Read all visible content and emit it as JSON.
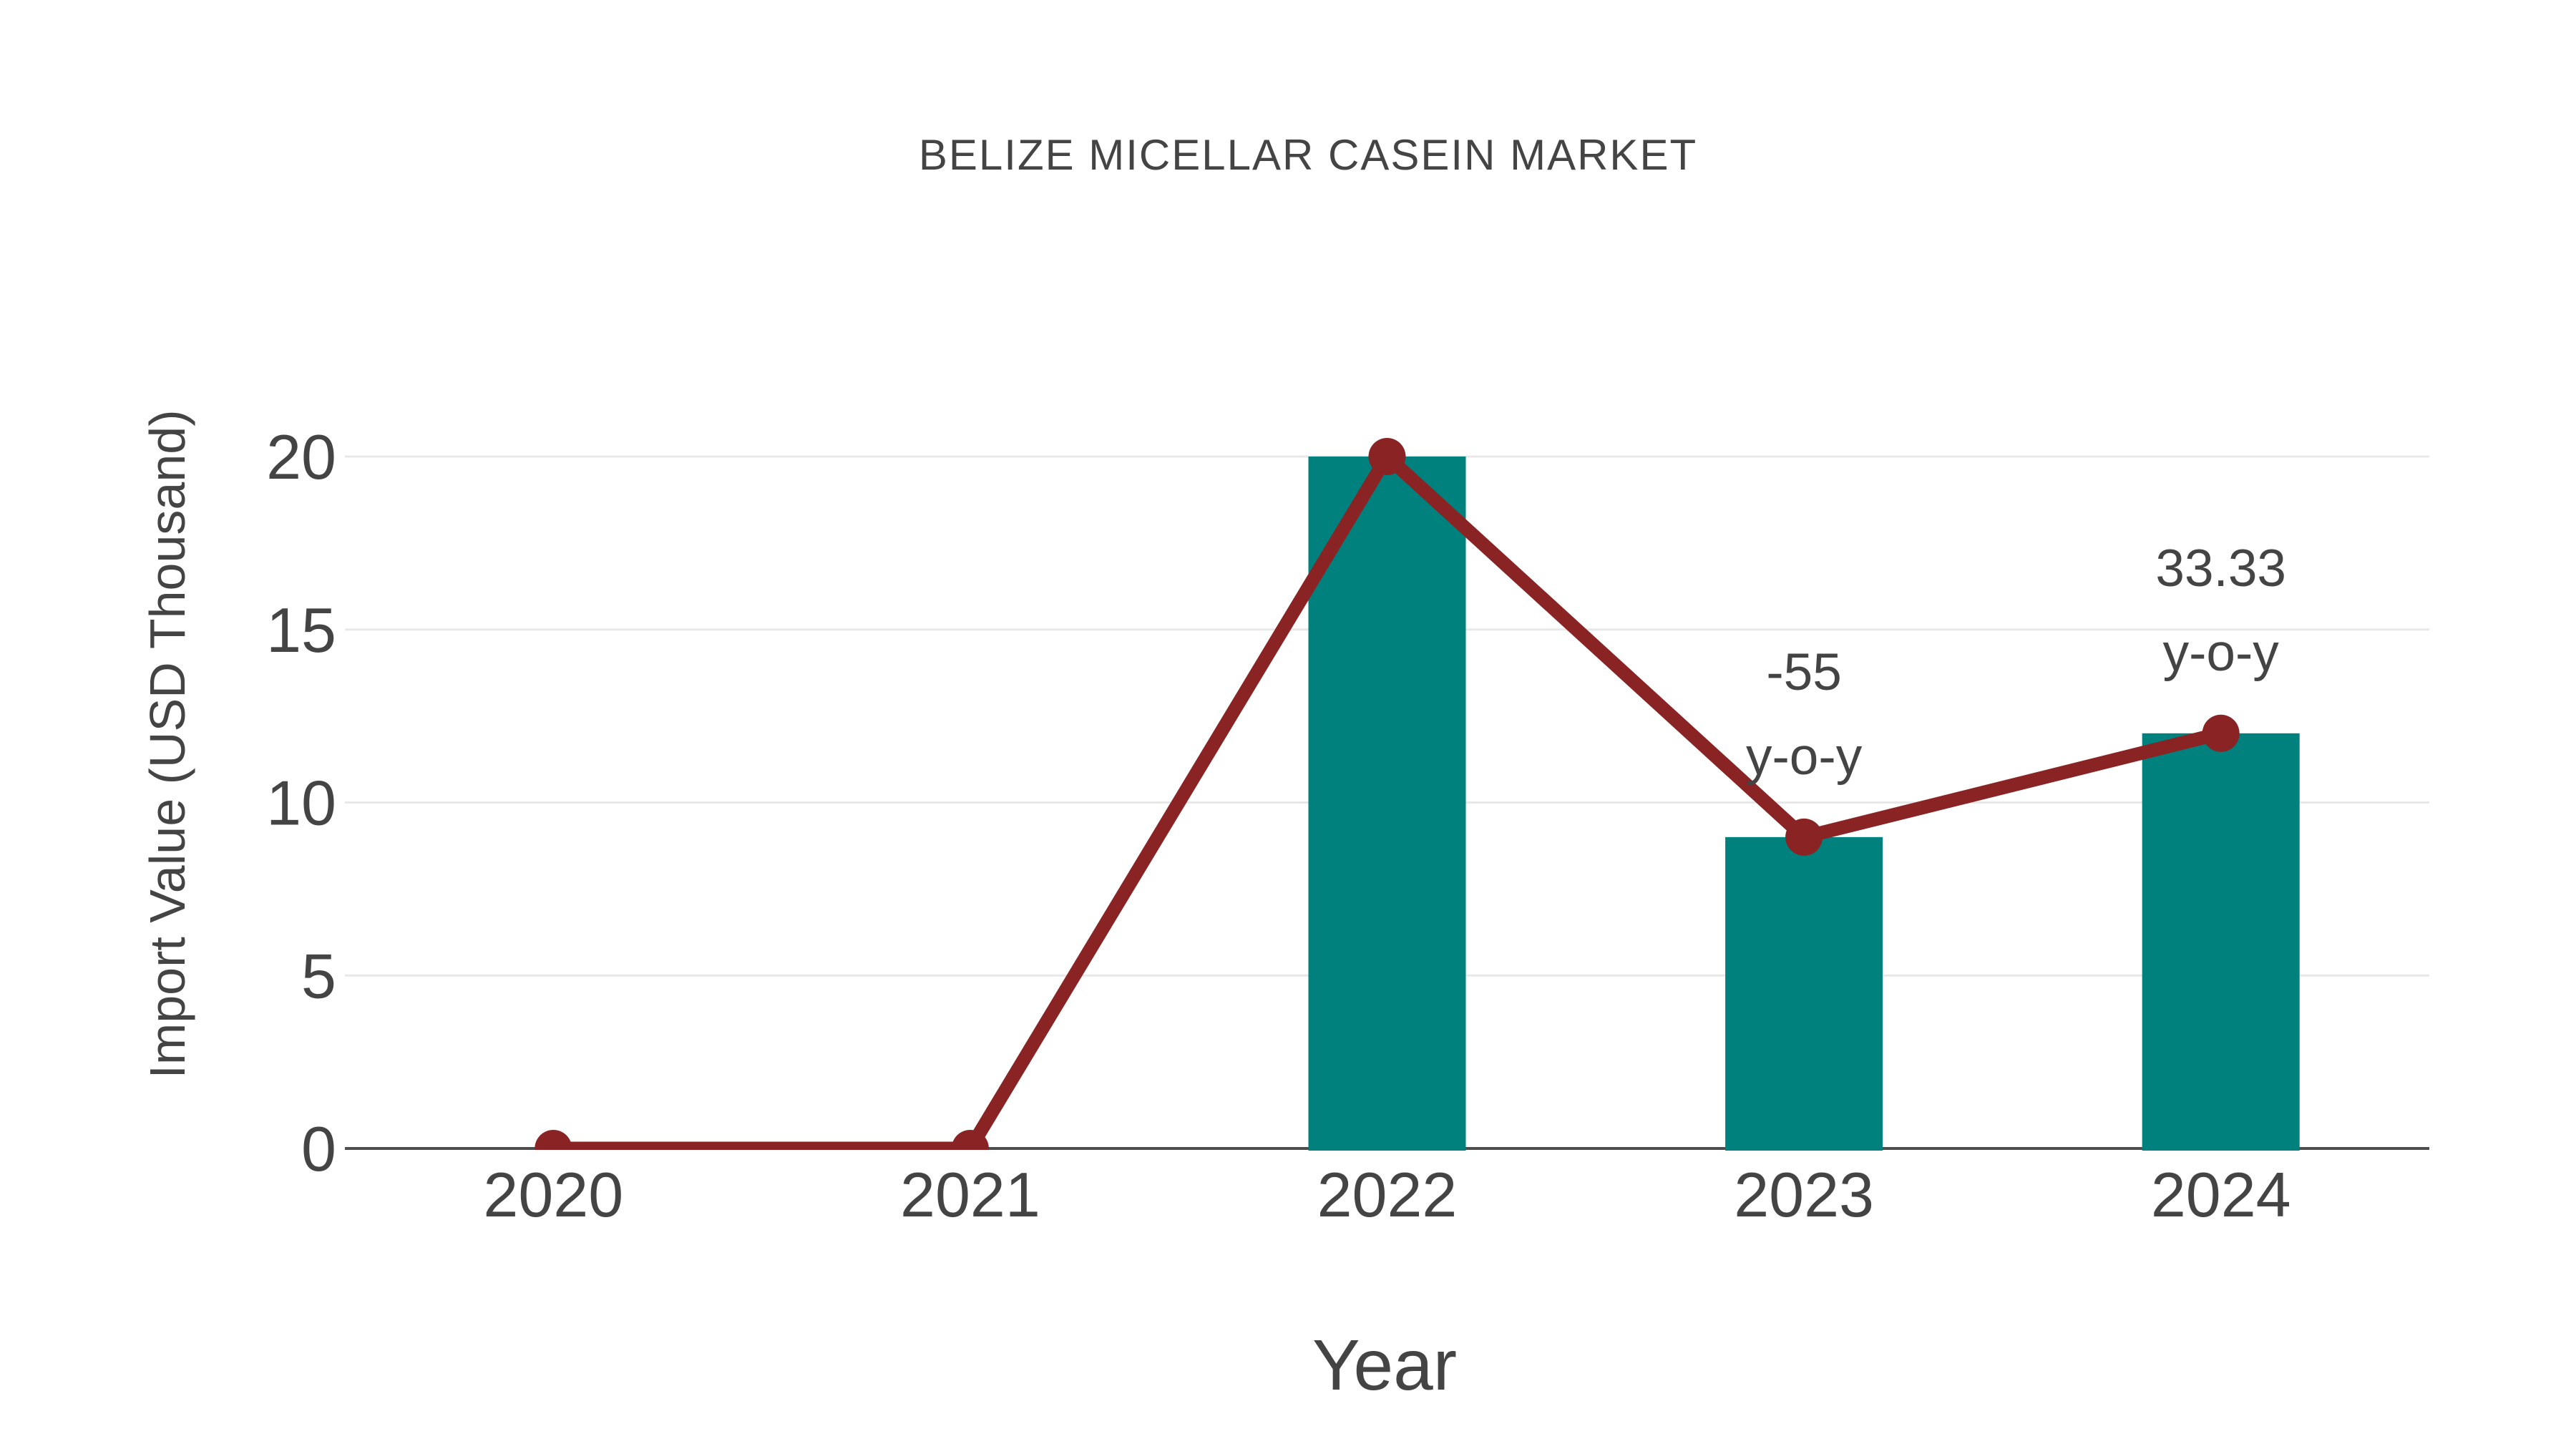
{
  "chart_data": {
    "type": "bar",
    "title": "BELIZE MICELLAR CASEIN MARKET",
    "xlabel": "Year",
    "ylabel": "Import Value (USD Thousand)",
    "categories": [
      "2020",
      "2021",
      "2022",
      "2023",
      "2024"
    ],
    "series": [
      {
        "name": "import-value-bars",
        "type": "bar",
        "values": [
          0,
          0,
          20,
          9,
          12
        ]
      },
      {
        "name": "import-value-line",
        "type": "line",
        "values": [
          0,
          0,
          20,
          9,
          12
        ]
      }
    ],
    "annotations": [
      {
        "category": "2023",
        "lines": [
          "-55",
          "y-o-y"
        ]
      },
      {
        "category": "2024",
        "lines": [
          "33.33",
          "y-o-y"
        ]
      }
    ],
    "y_ticks": [
      0,
      5,
      10,
      15,
      20
    ],
    "ylim": [
      0,
      20
    ],
    "grid": true,
    "legend_position": "none",
    "colors": {
      "bar": "#00817D",
      "line": "#8A2424",
      "text": "#444444",
      "grid": "#E8E8E8",
      "axis": "#4D4D4D",
      "background": "#FFFFFF"
    }
  }
}
